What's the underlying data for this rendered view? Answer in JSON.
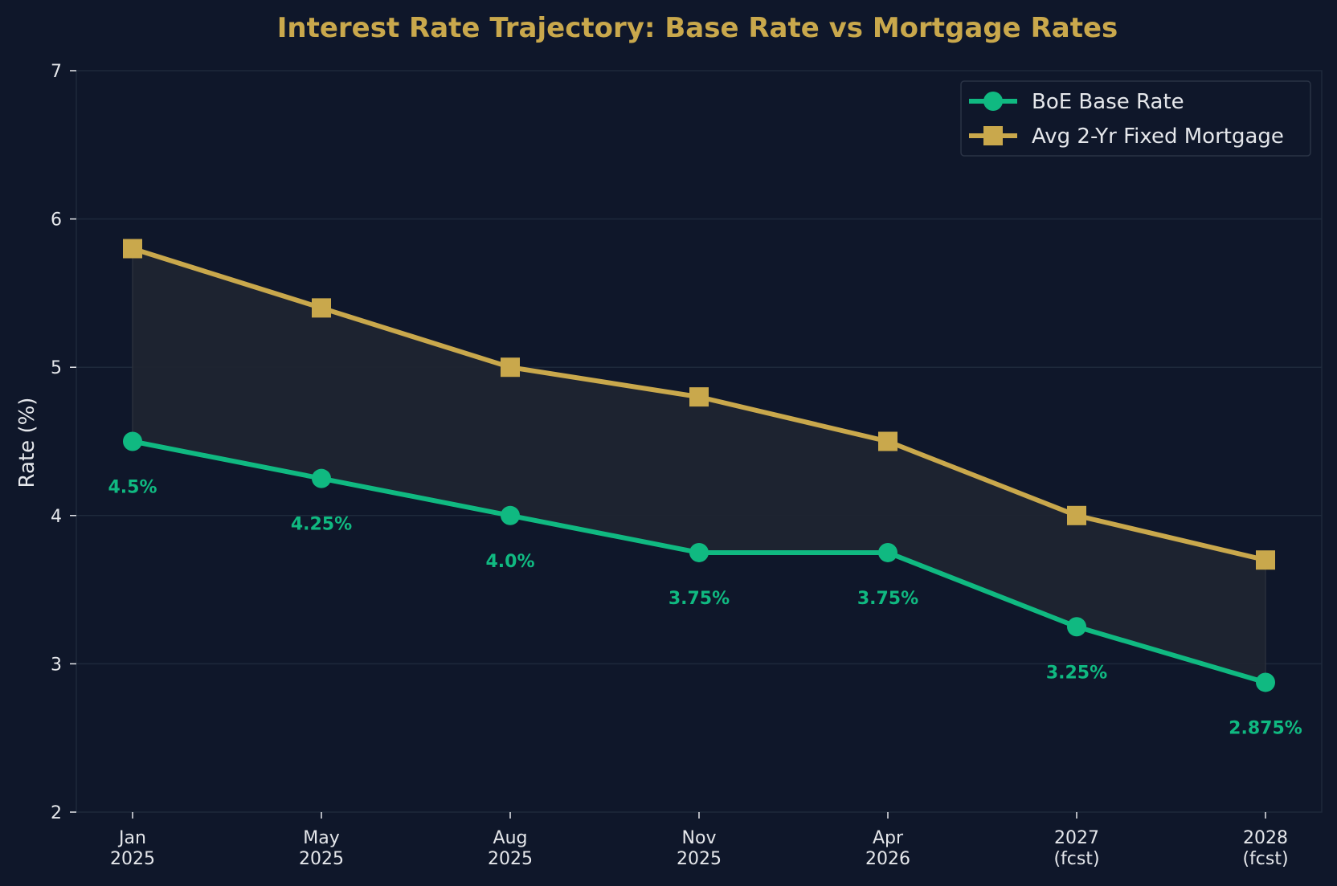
{
  "chart_data": {
    "type": "line",
    "title": "Interest Rate Trajectory: Base Rate vs Mortgage Rates",
    "xlabel": "",
    "ylabel": "Rate (%)",
    "categories": [
      [
        "Jan",
        "2025"
      ],
      [
        "May",
        "2025"
      ],
      [
        "Aug",
        "2025"
      ],
      [
        "Nov",
        "2025"
      ],
      [
        "Apr",
        "2026"
      ],
      [
        "2027",
        "(fcst)"
      ],
      [
        "2028",
        "(fcst)"
      ]
    ],
    "ylim": [
      2,
      7
    ],
    "yticks": [
      2,
      3,
      4,
      5,
      6,
      7
    ],
    "grid": true,
    "legend_position": "top-right",
    "series": [
      {
        "name": "BoE Base Rate",
        "values": [
          4.5,
          4.25,
          4.0,
          3.75,
          3.75,
          3.25,
          2.875
        ],
        "labels": [
          "4.5%",
          "4.25%",
          "4.0%",
          "3.75%",
          "3.75%",
          "3.25%",
          "2.875%"
        ],
        "color": "#10b981",
        "marker": "circle"
      },
      {
        "name": "Avg 2-Yr Fixed Mortgage",
        "values": [
          5.8,
          5.4,
          5.0,
          4.8,
          4.5,
          4.0,
          3.7
        ],
        "color": "#c9a84c",
        "marker": "square"
      }
    ],
    "fill_between_color": "#1f2430"
  }
}
